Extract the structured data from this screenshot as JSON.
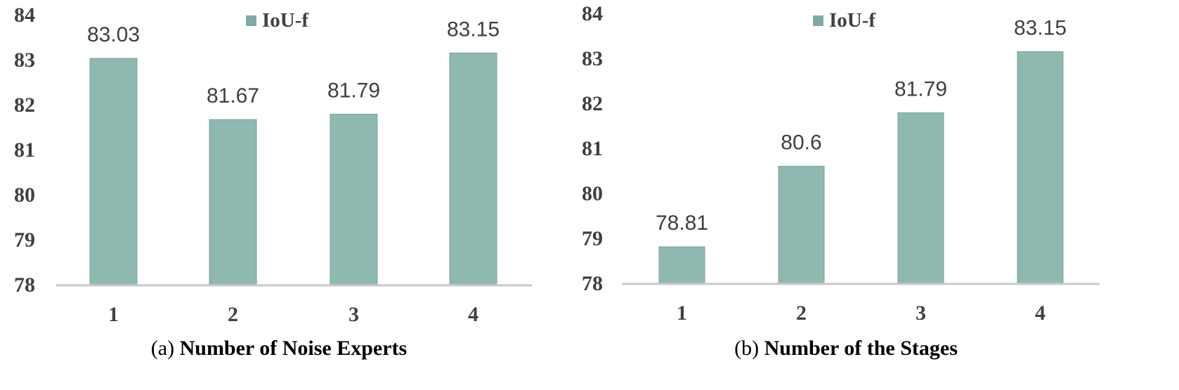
{
  "chart_data": [
    {
      "type": "bar",
      "caption_prefix": "(a)",
      "caption_title": "Number of Noise Experts",
      "categories": [
        "1",
        "2",
        "3",
        "4"
      ],
      "series": [
        {
          "name": "IoU-f",
          "values": [
            83.03,
            81.67,
            81.79,
            83.15
          ],
          "color": "#8fb8b0"
        }
      ],
      "data_labels": [
        "83.03",
        "81.67",
        "81.79",
        "83.15"
      ],
      "ylim": [
        78,
        84
      ],
      "yticks": [
        "78",
        "79",
        "80",
        "81",
        "82",
        "83",
        "84"
      ],
      "legend": "top-center",
      "grid": false
    },
    {
      "type": "bar",
      "caption_prefix": "(b)",
      "caption_title": "Number of the Stages",
      "categories": [
        "1",
        "2",
        "3",
        "4"
      ],
      "series": [
        {
          "name": "IoU-f",
          "values": [
            78.81,
            80.6,
            81.79,
            83.15
          ],
          "color": "#8fb8b0"
        }
      ],
      "data_labels": [
        "78.81",
        "80.6",
        "81.79",
        "83.15"
      ],
      "ylim": [
        78,
        84
      ],
      "yticks": [
        "78",
        "79",
        "80",
        "81",
        "82",
        "83",
        "84"
      ],
      "legend": "top-center",
      "grid": false
    }
  ],
  "colors": {
    "bar": "#8fb8b0",
    "bar_edge": "#7aa49c",
    "legend_swatch": "#7fa9a6",
    "axis": "#c8c8c8"
  }
}
